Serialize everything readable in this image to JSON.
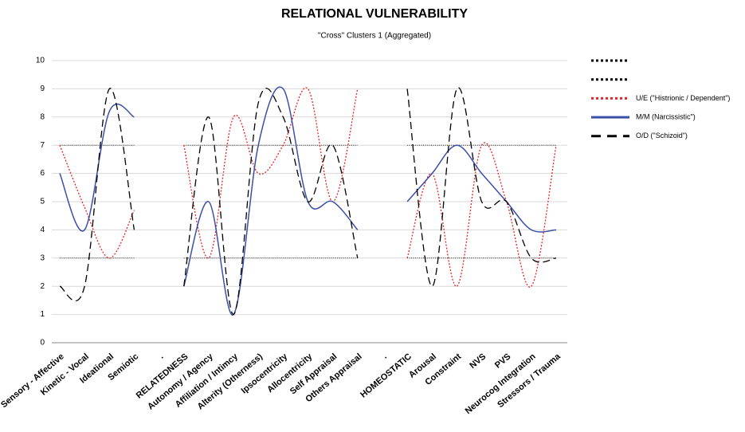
{
  "chart_data": {
    "type": "line",
    "title": "RELATIONAL VULNERABILITY",
    "subtitle": "\"Cross\" Clusters 1 (Aggregated)",
    "categories": [
      "Sensory - Affective",
      "Kinetic - Vocal",
      "Ideational",
      "Semiotic",
      ".",
      "RELATEDNESS",
      "Autonomy / Agency",
      "Affiliation / Intimcy",
      "Alterity (Otherness)",
      "Ipsocentricity",
      "Allocentricity",
      "Self Appraisal",
      "Others Appraisal",
      ".",
      "HOMEOSTATIC",
      "Arousal",
      "Constraint",
      "NVS",
      "PVS",
      "Neurocog Integration",
      "Stressors / Trauma"
    ],
    "ylim": [
      0,
      10
    ],
    "yticks": [
      0,
      1,
      2,
      3,
      4,
      5,
      6,
      7,
      8,
      9,
      10
    ],
    "grid": true,
    "series": [
      {
        "color": "#000000",
        "style": "dotted",
        "values": [
          7,
          7,
          7,
          7,
          null,
          7,
          7,
          7,
          7,
          7,
          7,
          7,
          7,
          null,
          7,
          7,
          7,
          7,
          7,
          7,
          7
        ]
      },
      {
        "color": "#000000",
        "style": "dotted",
        "values": [
          3,
          3,
          3,
          3,
          null,
          3,
          3,
          3,
          3,
          3,
          3,
          3,
          3,
          null,
          3,
          3,
          3,
          3,
          3,
          3,
          3
        ]
      },
      {
        "name": "U/E (\"Histrionic / Dependent\")",
        "color": "#e8242a",
        "style": "dotted",
        "values": [
          7,
          4.8,
          3,
          4.7,
          null,
          7,
          3,
          8,
          6,
          7,
          9,
          5,
          9,
          null,
          3,
          6,
          2,
          7,
          5,
          2,
          7
        ]
      },
      {
        "name": "M/M (Narcissistic\")",
        "color": "#3c4fa8",
        "style": "solid",
        "values": [
          6,
          4,
          8.2,
          8,
          null,
          2,
          5,
          1,
          7,
          9,
          5,
          5,
          4,
          null,
          5,
          6,
          7,
          6,
          5,
          4,
          4
        ]
      },
      {
        "name": "O/D (\"Schizoid\")",
        "color": "#000000",
        "style": "dashed",
        "values": [
          2,
          2,
          9,
          4,
          null,
          2,
          8,
          1,
          8.5,
          8,
          5,
          7,
          3,
          null,
          9,
          2,
          9,
          5,
          5,
          3,
          3
        ]
      }
    ]
  }
}
